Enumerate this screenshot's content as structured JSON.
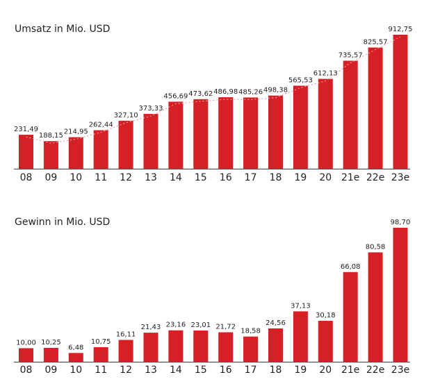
{
  "colors": {
    "bar": "#d71f26",
    "axis": "#555555",
    "trend": "#e7a3a3",
    "text": "#222222"
  },
  "chart_data": [
    {
      "type": "bar",
      "title": "Umsatz in Mio. USD",
      "categories": [
        "08",
        "09",
        "10",
        "11",
        "12",
        "13",
        "14",
        "15",
        "16",
        "17",
        "18",
        "19",
        "20",
        "21e",
        "22e",
        "23e"
      ],
      "values": [
        231.49,
        188.15,
        214.95,
        262.44,
        327.1,
        373.33,
        456.69,
        473.62,
        486.98,
        485.26,
        498.38,
        565.53,
        612.13,
        735.57,
        825.57,
        912.75
      ],
      "value_labels": [
        "231,49",
        "188,15",
        "214,95",
        "262,44",
        "327,10",
        "373,33",
        "456,69",
        "473,62",
        "486,98",
        "485,26",
        "498,38",
        "565,53",
        "612,13",
        "735,57",
        "825,57",
        "912,75"
      ],
      "trend_line": true,
      "ylim": [
        0,
        912.75
      ],
      "grid": false
    },
    {
      "type": "bar",
      "title": "Gewinn in Mio. USD",
      "categories": [
        "08",
        "09",
        "10",
        "11",
        "12",
        "13",
        "14",
        "15",
        "16",
        "17",
        "18",
        "19",
        "20",
        "21e",
        "22e",
        "23e"
      ],
      "values": [
        10.0,
        10.25,
        6.48,
        10.75,
        16.11,
        21.43,
        23.16,
        23.01,
        21.72,
        18.58,
        24.56,
        37.13,
        30.18,
        66.08,
        80.58,
        98.7
      ],
      "value_labels": [
        "10,00",
        "10,25",
        "6,48",
        "10,75",
        "16,11",
        "21,43",
        "23,16",
        "23,01",
        "21,72",
        "18,58",
        "24,56",
        "37,13",
        "30,18",
        "66,08",
        "80,58",
        "98,70"
      ],
      "trend_line": false,
      "ylim": [
        0,
        98.7
      ],
      "grid": false
    }
  ]
}
